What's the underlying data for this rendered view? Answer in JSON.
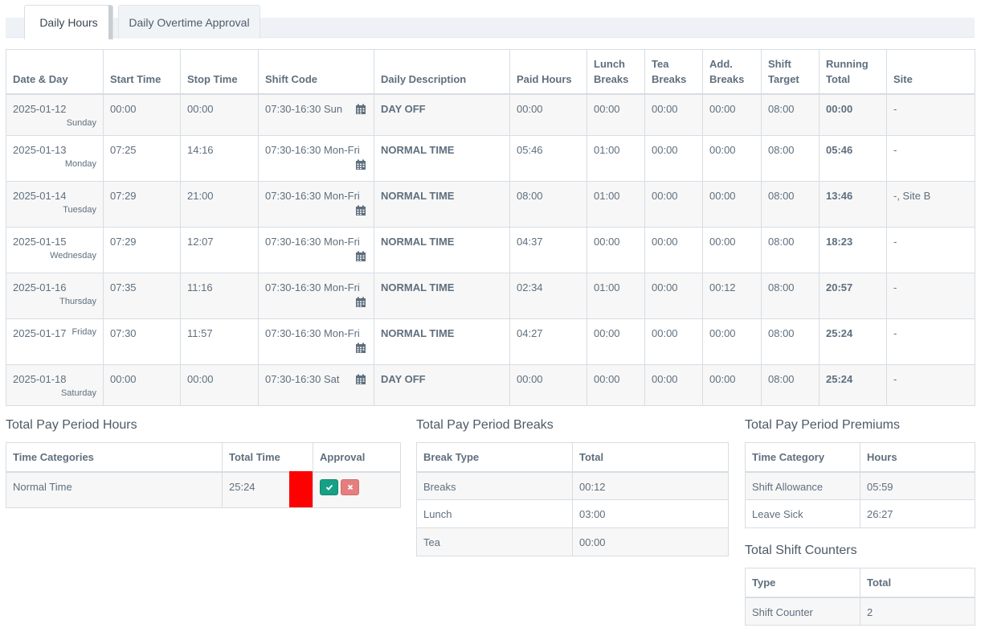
{
  "tabs": [
    {
      "label": "Daily Hours",
      "active": true
    },
    {
      "label": "Daily Overtime Approval",
      "active": false
    }
  ],
  "daily_table": {
    "headers": {
      "date_day": "Date & Day",
      "start_time": "Start Time",
      "stop_time": "Stop Time",
      "shift_code": "Shift Code",
      "daily_description": "Daily Description",
      "paid_hours": "Paid Hours",
      "lunch_breaks_1": "Lunch",
      "lunch_breaks_2": "Breaks",
      "tea_breaks_1": "Tea",
      "tea_breaks_2": "Breaks",
      "add_breaks_1": "Add.",
      "add_breaks_2": "Breaks",
      "shift_target_1": "Shift",
      "shift_target_2": "Target",
      "running_total_1": "Running",
      "running_total_2": "Total",
      "site": "Site"
    },
    "rows": [
      {
        "date": "2025-01-12",
        "day": "Sunday",
        "start": "00:00",
        "stop": "00:00",
        "shift_code": "07:30-16:30 Sun",
        "description": "DAY OFF",
        "paid": "00:00",
        "lunch": "00:00",
        "tea": "00:00",
        "add": "00:00",
        "target": "08:00",
        "running": "00:00",
        "site": "-"
      },
      {
        "date": "2025-01-13",
        "day": "Monday",
        "start": "07:25",
        "stop": "14:16",
        "shift_code": "07:30-16:30 Mon-Fri",
        "description": "NORMAL TIME",
        "paid": "05:46",
        "lunch": "01:00",
        "tea": "00:00",
        "add": "00:00",
        "target": "08:00",
        "running": "05:46",
        "site": "-"
      },
      {
        "date": "2025-01-14",
        "day": "Tuesday",
        "start": "07:29",
        "stop": "21:00",
        "shift_code": "07:30-16:30 Mon-Fri",
        "description": "NORMAL TIME",
        "paid": "08:00",
        "lunch": "01:00",
        "tea": "00:00",
        "add": "00:00",
        "target": "08:00",
        "running": "13:46",
        "site": "-, Site B"
      },
      {
        "date": "2025-01-15",
        "day": "Wednesday",
        "start": "07:29",
        "stop": "12:07",
        "shift_code": "07:30-16:30 Mon-Fri",
        "description": "NORMAL TIME",
        "paid": "04:37",
        "lunch": "00:00",
        "tea": "00:00",
        "add": "00:00",
        "target": "08:00",
        "running": "18:23",
        "site": "-"
      },
      {
        "date": "2025-01-16",
        "day": "Thursday",
        "start": "07:35",
        "stop": "11:16",
        "shift_code": "07:30-16:30 Mon-Fri",
        "description": "NORMAL TIME",
        "paid": "02:34",
        "lunch": "01:00",
        "tea": "00:00",
        "add": "00:12",
        "target": "08:00",
        "running": "20:57",
        "site": "-"
      },
      {
        "date": "2025-01-17",
        "day": "Friday",
        "start": "07:30",
        "stop": "11:57",
        "shift_code": "07:30-16:30 Mon-Fri",
        "description": "NORMAL TIME",
        "paid": "04:27",
        "lunch": "00:00",
        "tea": "00:00",
        "add": "00:00",
        "target": "08:00",
        "running": "25:24",
        "site": "-"
      },
      {
        "date": "2025-01-18",
        "day": "Saturday",
        "start": "00:00",
        "stop": "00:00",
        "shift_code": "07:30-16:30 Sat",
        "description": "DAY OFF",
        "paid": "00:00",
        "lunch": "00:00",
        "tea": "00:00",
        "add": "00:00",
        "target": "08:00",
        "running": "25:24",
        "site": "-"
      }
    ]
  },
  "pay_period_hours": {
    "title": "Total Pay Period Hours",
    "headers": {
      "category": "Time Categories",
      "total": "Total Time",
      "approval": "Approval"
    },
    "rows": [
      {
        "category": "Normal Time",
        "total": "25:24",
        "status_color": "#ff0000"
      }
    ]
  },
  "pay_period_breaks": {
    "title": "Total Pay Period Breaks",
    "headers": {
      "type": "Break Type",
      "total": "Total"
    },
    "rows": [
      {
        "type": "Breaks",
        "total": "00:12"
      },
      {
        "type": "Lunch",
        "total": "03:00"
      },
      {
        "type": "Tea",
        "total": "00:00"
      }
    ]
  },
  "pay_period_premiums": {
    "title": "Total Pay Period Premiums",
    "headers": {
      "category": "Time Category",
      "hours": "Hours"
    },
    "rows": [
      {
        "category": "Shift Allowance",
        "hours": "05:59"
      },
      {
        "category": "Leave Sick",
        "hours": "26:27"
      }
    ]
  },
  "shift_counters": {
    "title": "Total Shift Counters",
    "headers": {
      "type": "Type",
      "total": "Total"
    },
    "rows": [
      {
        "type": "Shift Counter",
        "total": "2"
      }
    ]
  },
  "icons": {
    "calendar": "calendar-icon",
    "approve": "check-icon",
    "reject": "close-icon"
  },
  "colors": {
    "approve": "#16a085",
    "reject": "#e57f7f",
    "status_red": "#ff0000"
  }
}
